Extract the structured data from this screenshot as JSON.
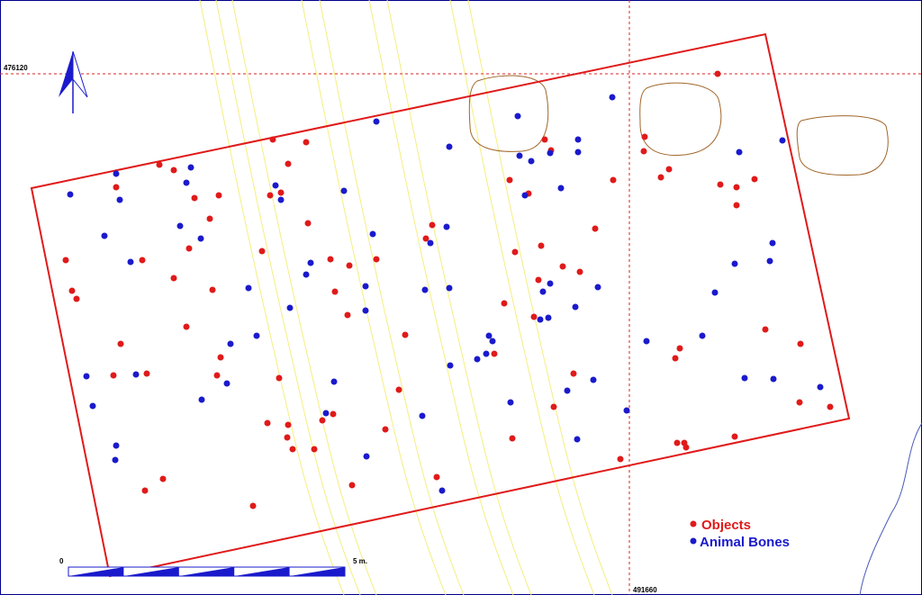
{
  "grid_labels": {
    "northing": "476120",
    "easting": "491660"
  },
  "scale_bar": {
    "start": "0",
    "end": "5 m."
  },
  "legend": {
    "items": [
      "Objects",
      "Animal Bones"
    ]
  }
}
